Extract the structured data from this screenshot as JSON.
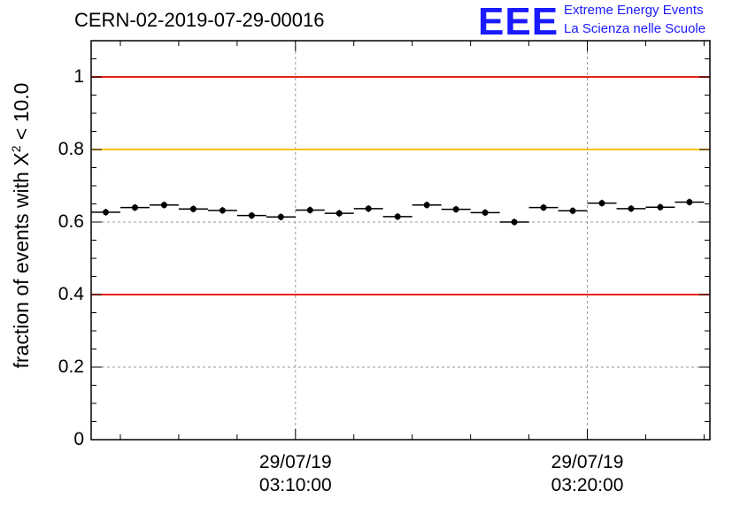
{
  "header": {
    "title": "CERN-02-2019-07-29-00016",
    "logo_mark": "EEE",
    "logo_line1": "Extreme Energy Events",
    "logo_line2": "La Scienza nelle Scuole"
  },
  "chart_data": {
    "type": "scatter",
    "title": "CERN-02-2019-07-29-00016",
    "ylabel": {
      "prefix": "fraction of events with ",
      "symbol": "X",
      "sup": "2",
      "suffix": " < 10.0"
    },
    "xlabel": "",
    "ylim": [
      0,
      1.1
    ],
    "xlim_minutes": [
      3.0,
      24.2
    ],
    "yticks": [
      {
        "value": 0,
        "label": "0"
      },
      {
        "value": 0.2,
        "label": "0.2"
      },
      {
        "value": 0.4,
        "label": "0.4"
      },
      {
        "value": 0.6,
        "label": "0.6"
      },
      {
        "value": 0.8,
        "label": "0.8"
      },
      {
        "value": 1,
        "label": "1"
      }
    ],
    "xticks": [
      {
        "minute": 10,
        "date": "29/07/19",
        "time": "03:10:00"
      },
      {
        "minute": 20,
        "date": "29/07/19",
        "time": "03:20:00"
      }
    ],
    "grid": true,
    "reference_lines": [
      {
        "y": 1.0,
        "color": "#e8231f"
      },
      {
        "y": 0.8,
        "color": "#ffc000"
      },
      {
        "y": 0.4,
        "color": "#e8231f"
      }
    ],
    "bin_halfwidth_minutes": 0.5,
    "points": [
      {
        "t": "03:03:30",
        "y": 0.627
      },
      {
        "t": "03:04:30",
        "y": 0.64
      },
      {
        "t": "03:05:30",
        "y": 0.647
      },
      {
        "t": "03:06:30",
        "y": 0.636
      },
      {
        "t": "03:07:30",
        "y": 0.632
      },
      {
        "t": "03:08:30",
        "y": 0.618
      },
      {
        "t": "03:09:30",
        "y": 0.614
      },
      {
        "t": "03:10:30",
        "y": 0.633
      },
      {
        "t": "03:11:30",
        "y": 0.624
      },
      {
        "t": "03:12:30",
        "y": 0.637
      },
      {
        "t": "03:13:30",
        "y": 0.615
      },
      {
        "t": "03:14:30",
        "y": 0.647
      },
      {
        "t": "03:15:30",
        "y": 0.635
      },
      {
        "t": "03:16:30",
        "y": 0.626
      },
      {
        "t": "03:17:30",
        "y": 0.6
      },
      {
        "t": "03:18:30",
        "y": 0.64
      },
      {
        "t": "03:19:30",
        "y": 0.631
      },
      {
        "t": "03:20:30",
        "y": 0.652
      },
      {
        "t": "03:21:30",
        "y": 0.637
      },
      {
        "t": "03:22:30",
        "y": 0.641
      },
      {
        "t": "03:23:30",
        "y": 0.655
      }
    ],
    "marker_color": "#000000",
    "grid_color": "#999999"
  }
}
